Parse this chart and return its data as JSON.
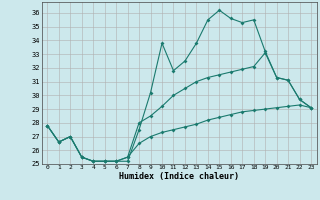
{
  "xlabel": "Humidex (Indice chaleur)",
  "xlim": [
    -0.5,
    23.5
  ],
  "ylim": [
    25,
    36.8
  ],
  "yticks": [
    25,
    26,
    27,
    28,
    29,
    30,
    31,
    32,
    33,
    34,
    35,
    36
  ],
  "xticks": [
    0,
    1,
    2,
    3,
    4,
    5,
    6,
    7,
    8,
    9,
    10,
    11,
    12,
    13,
    14,
    15,
    16,
    17,
    18,
    19,
    20,
    21,
    22,
    23
  ],
  "background_color": "#cce8ec",
  "grid_color": "#b0b0b0",
  "line_color": "#1a7a6e",
  "line1_y": [
    27.8,
    26.6,
    27.0,
    25.5,
    25.2,
    25.2,
    25.2,
    25.2,
    27.5,
    30.2,
    33.8,
    31.8,
    32.5,
    33.8,
    35.5,
    36.2,
    35.6,
    35.3,
    35.5,
    33.2,
    31.3,
    31.1,
    29.7,
    29.1
  ],
  "line2_y": [
    27.8,
    26.6,
    27.0,
    25.5,
    25.2,
    25.2,
    25.2,
    25.5,
    28.0,
    28.5,
    29.2,
    30.0,
    30.5,
    31.0,
    31.3,
    31.5,
    31.7,
    31.9,
    32.1,
    33.1,
    31.3,
    31.1,
    29.7,
    29.1
  ],
  "line3_y": [
    27.8,
    26.6,
    27.0,
    25.5,
    25.2,
    25.2,
    25.2,
    25.5,
    26.5,
    27.0,
    27.3,
    27.5,
    27.7,
    27.9,
    28.2,
    28.4,
    28.6,
    28.8,
    28.9,
    29.0,
    29.1,
    29.2,
    29.3,
    29.1
  ]
}
